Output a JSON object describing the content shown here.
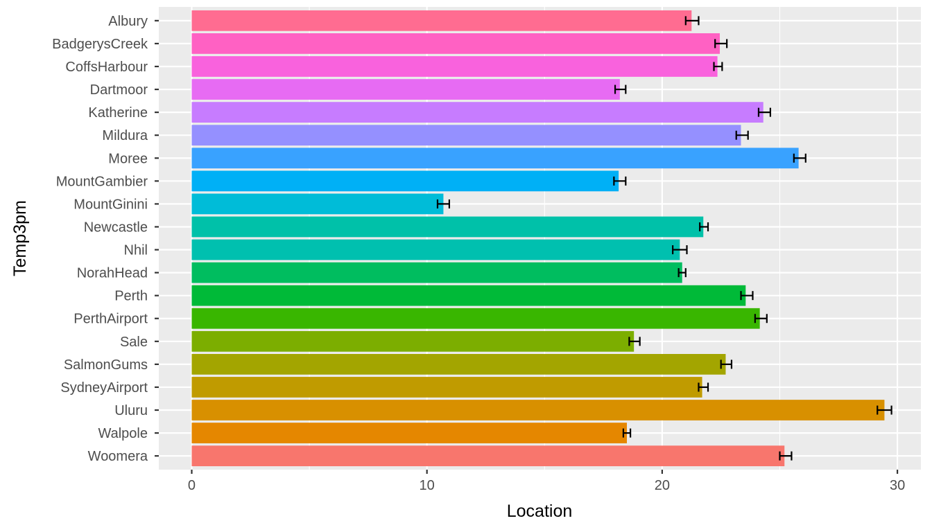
{
  "chart_data": {
    "type": "bar",
    "orientation": "horizontal",
    "xlabel": "Location",
    "ylabel": "Temp3pm",
    "xlim": [
      -1.4,
      31.0
    ],
    "xticks": [
      0,
      10,
      20,
      30
    ],
    "grid": true,
    "legend": "none",
    "categories": [
      "Albury",
      "BadgerysCreek",
      "CoffsHarbour",
      "Dartmoor",
      "Katherine",
      "Mildura",
      "Moree",
      "MountGambier",
      "MountGinini",
      "Newcastle",
      "Nhil",
      "NorahHead",
      "Perth",
      "PerthAirport",
      "Sale",
      "SalmonGums",
      "SydneyAirport",
      "Uluru",
      "Walpole",
      "Woomera"
    ],
    "values": [
      21.25,
      22.45,
      22.35,
      18.2,
      24.3,
      23.35,
      25.8,
      18.15,
      10.7,
      21.75,
      20.75,
      20.85,
      23.55,
      24.15,
      18.8,
      22.7,
      21.7,
      29.45,
      18.5,
      25.2
    ],
    "error_low": [
      21.0,
      22.25,
      22.2,
      18.0,
      24.1,
      23.15,
      25.6,
      17.95,
      10.45,
      21.6,
      20.45,
      20.7,
      23.35,
      23.95,
      18.6,
      22.5,
      21.55,
      29.15,
      18.35,
      25.0
    ],
    "error_high": [
      21.55,
      22.75,
      22.55,
      18.45,
      24.6,
      23.65,
      26.1,
      18.45,
      10.95,
      21.95,
      21.05,
      21.0,
      23.85,
      24.45,
      19.05,
      22.95,
      21.95,
      29.75,
      18.65,
      25.5
    ],
    "colors": [
      "#FF6C91",
      "#FF61C3",
      "#F962DD",
      "#E76BF3",
      "#C77CFF",
      "#9590FF",
      "#39A2FF",
      "#00B0F6",
      "#00BCD8",
      "#00C1A9",
      "#00C0AF",
      "#00BD5F",
      "#00BA38",
      "#39B600",
      "#7CAE00",
      "#A3A500",
      "#C09B00",
      "#D89000",
      "#E58700",
      "#F8766D"
    ],
    "panel_background": "#EBEBEB",
    "grid_color": "#FFFFFF"
  }
}
